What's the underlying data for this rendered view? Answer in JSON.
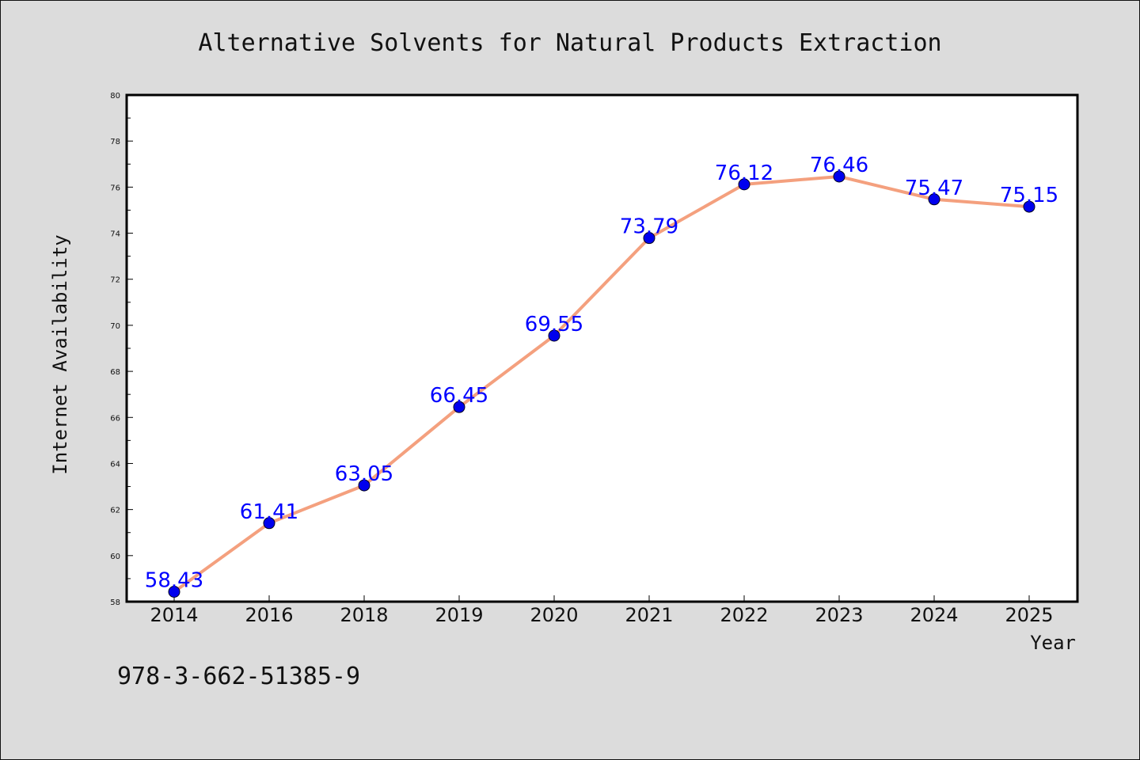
{
  "chart_data": {
    "type": "line",
    "title": "Alternative Solvents for Natural Products Extraction",
    "xlabel": "Year",
    "ylabel": "Internet Availability",
    "categories": [
      "2014",
      "2016",
      "2018",
      "2019",
      "2020",
      "2021",
      "2022",
      "2023",
      "2024",
      "2025"
    ],
    "series": [
      {
        "values": [
          58.43,
          61.41,
          63.05,
          66.45,
          69.55,
          73.79,
          76.12,
          76.46,
          75.47,
          75.15
        ],
        "data_labels": [
          "58.43",
          "61.41",
          "63.05",
          "66.45",
          "69.55",
          "73.79",
          "76.12",
          "76.46",
          "75.47",
          "75.15"
        ]
      }
    ],
    "ylim": [
      58,
      80
    ],
    "yticks": [
      "58",
      "60",
      "62",
      "64",
      "66",
      "68",
      "70",
      "72",
      "74",
      "76",
      "78",
      "80"
    ],
    "grid": false,
    "legend": "none",
    "colors": {
      "line": "#f4a07e",
      "marker": "#0000ee",
      "data_label": "#0000ff",
      "plot_background": "#ffffff",
      "figure_background": "#dcdcdc"
    }
  },
  "footer": {
    "isbn": "978-3-662-51385-9"
  }
}
